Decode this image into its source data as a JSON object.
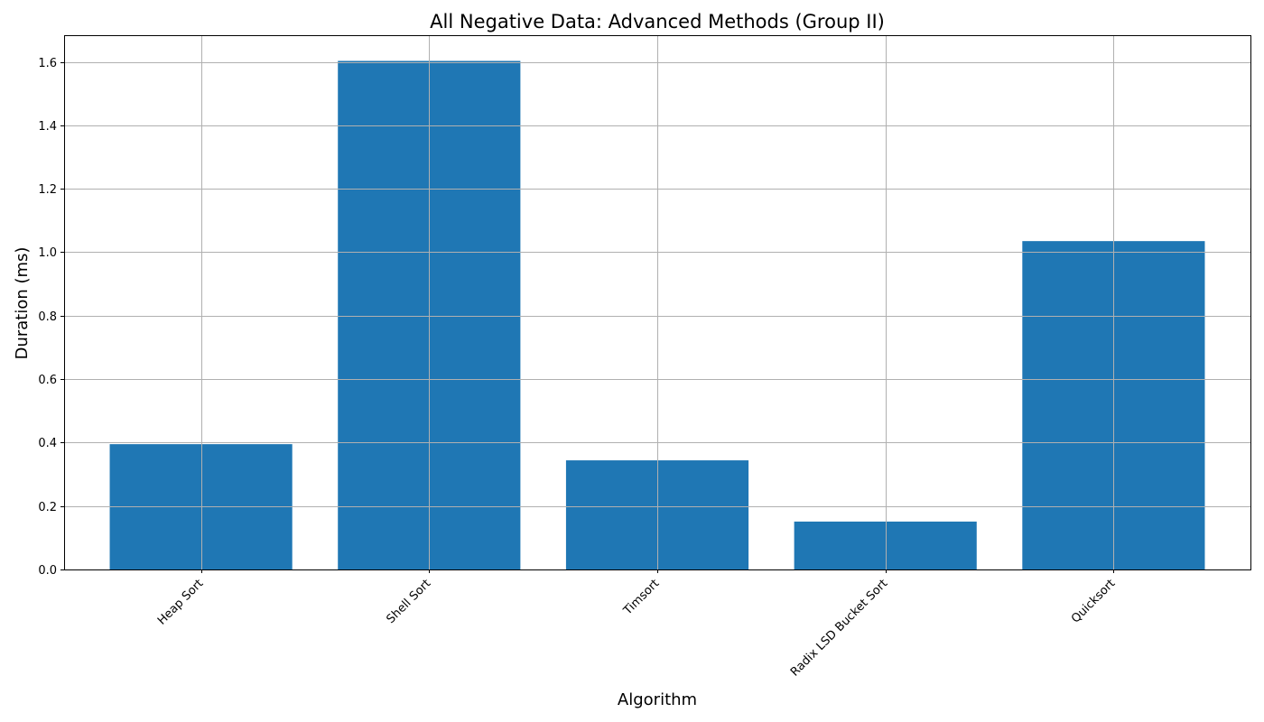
{
  "chart_data": {
    "type": "bar",
    "title": "All Negative Data: Advanced Methods (Group II)",
    "xlabel": "Algorithm",
    "ylabel": "Duration (ms)",
    "categories": [
      "Heap Sort",
      "Shell Sort",
      "Timsort",
      "Radix LSD Bucket Sort",
      "Quicksort"
    ],
    "values": [
      0.395,
      1.603,
      0.344,
      0.151,
      1.035
    ],
    "ylim": [
      0,
      1.684
    ],
    "yticks": [
      "0.0",
      "0.2",
      "0.4",
      "0.6",
      "0.8",
      "1.0",
      "1.2",
      "1.4",
      "1.6"
    ],
    "grid": true,
    "legend": "none",
    "bar_color": "#1f77b4",
    "grid_color": "#b0b0b0"
  }
}
